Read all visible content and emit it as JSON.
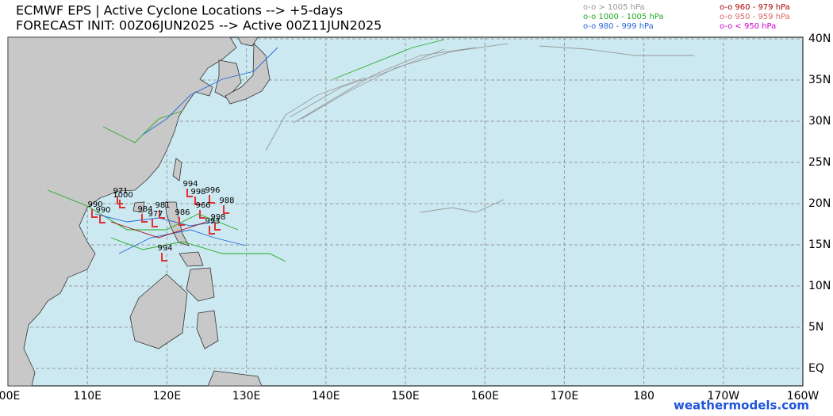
{
  "header": {
    "title_line1": "ECMWF EPS | Active Cyclone Locations --> +5-days",
    "title_line2": "FORECAST INIT: 00Z06JUN2025 --> Active 00Z11JUN2025"
  },
  "legend": [
    {
      "label": "o-o > 1005 hPa",
      "color": "#999999"
    },
    {
      "label": "o-o 1000 - 1005 hPa",
      "color": "#22aa22"
    },
    {
      "label": "o-o 980 - 999 hPa",
      "color": "#2266dd"
    },
    {
      "label": "o-o 960 - 979 hPa",
      "color": "#aa0000"
    },
    {
      "label": "o-o 950 - 959 hPa",
      "color": "#dd6666"
    },
    {
      "label": "o-o < 950 hPa",
      "color": "#cc00cc"
    }
  ],
  "map": {
    "lon_ticks": [
      {
        "value": 100,
        "label": "00E"
      },
      {
        "value": 110,
        "label": "110E"
      },
      {
        "value": 120,
        "label": "120E"
      },
      {
        "value": 130,
        "label": "130E"
      },
      {
        "value": 140,
        "label": "140E"
      },
      {
        "value": 150,
        "label": "150E"
      },
      {
        "value": 160,
        "label": "160E"
      },
      {
        "value": 170,
        "label": "170E"
      },
      {
        "value": 180,
        "label": "180"
      },
      {
        "value": 190,
        "label": "170W"
      },
      {
        "value": 200,
        "label": "160W"
      }
    ],
    "lat_ticks": [
      {
        "value": 0,
        "label": "EQ"
      },
      {
        "value": 5,
        "label": "5N"
      },
      {
        "value": 10,
        "label": "10N"
      },
      {
        "value": 15,
        "label": "15N"
      },
      {
        "value": 20,
        "label": "20N"
      },
      {
        "value": 25,
        "label": "25N"
      },
      {
        "value": 30,
        "label": "30N"
      },
      {
        "value": 35,
        "label": "35N"
      },
      {
        "value": 40,
        "label": "40N"
      }
    ],
    "pressure_labels": [
      "994",
      "998",
      "996",
      "988",
      "990",
      "971",
      "1000",
      "984",
      "981",
      "986",
      "966",
      "993",
      "998",
      "994",
      "990",
      "977"
    ]
  },
  "watermark": "weathermodels.com"
}
